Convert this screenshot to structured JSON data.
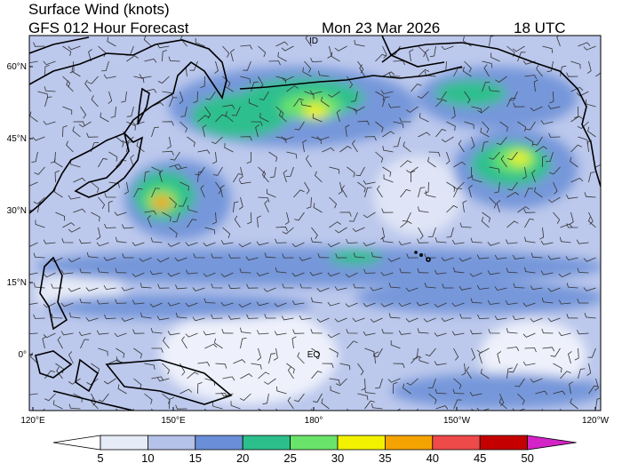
{
  "header": {
    "title": "Surface Wind (knots)",
    "subtitle": "GFS 012 Hour Forecast",
    "date": "Mon 23 Mar 2026",
    "time": "18 UTC"
  },
  "lat_labels": [
    "60°N",
    "45°N",
    "30°N",
    "15°N",
    "0°"
  ],
  "lon_labels": [
    "120°E",
    "150°E",
    "180°",
    "150°W",
    "120°W"
  ],
  "map_labels": {
    "equator": "EQ",
    "dateline": "ID"
  },
  "colorbar": {
    "labels": [
      "5",
      "10",
      "15",
      "20",
      "25",
      "30",
      "35",
      "40",
      "45",
      "50"
    ],
    "colors": [
      "#ffffff",
      "#e6ebf8",
      "#b4c1e8",
      "#6a8fd8",
      "#2cbf8c",
      "#6ae36a",
      "#f2f200",
      "#f5a300",
      "#ee4a4a",
      "#c40000",
      "#d424c8"
    ]
  }
}
